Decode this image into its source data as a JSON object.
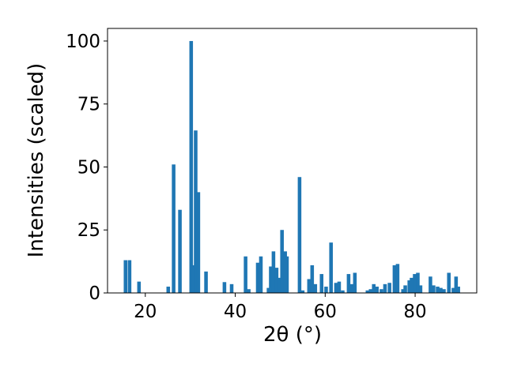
{
  "chart_data": {
    "type": "bar",
    "xlabel": "2θ (°)",
    "ylabel": "Intensities (scaled)",
    "x": [
      15.6,
      16.5,
      18.6,
      25.1,
      26.3,
      27.7,
      30.2,
      30.7,
      31.2,
      31.8,
      33.5,
      37.6,
      39.2,
      42.3,
      43.0,
      45.0,
      45.7,
      47.4,
      47.9,
      48.5,
      49.2,
      49.9,
      50.4,
      51.1,
      51.5,
      54.3,
      55.0,
      56.4,
      57.1,
      57.8,
      59.2,
      60.2,
      61.3,
      62.4,
      63.1,
      63.9,
      65.2,
      65.9,
      66.6,
      69.4,
      70.1,
      70.8,
      71.5,
      72.5,
      73.3,
      74.3,
      75.4,
      76.1,
      77.3,
      77.8,
      78.7,
      79.2,
      79.9,
      80.6,
      81.2,
      83.4,
      84.1,
      85.0,
      85.7,
      86.4,
      87.5,
      88.5,
      89.1,
      89.6
    ],
    "values": [
      13,
      13,
      4.5,
      2.5,
      51,
      33,
      100,
      11,
      64.5,
      40,
      8.5,
      4.3,
      3.5,
      14.5,
      1.5,
      12,
      14.5,
      2,
      10.5,
      16.5,
      10,
      6,
      25,
      16.5,
      14.5,
      46,
      1,
      5.5,
      11,
      3.5,
      7.5,
      2.5,
      20,
      4,
      4.5,
      1,
      7.5,
      3.5,
      8,
      1,
      1.5,
      3.5,
      2.5,
      1.5,
      3.5,
      4,
      11,
      11.5,
      1.5,
      3,
      5,
      6,
      7.5,
      8,
      3,
      6.5,
      3,
      2.5,
      2,
      1.5,
      8,
      2,
      6.5,
      2.5
    ],
    "color": "#1f77b4",
    "bar_width": 0.8,
    "xlim": [
      11.6,
      93.7
    ],
    "xticks": [
      20,
      40,
      60,
      80
    ],
    "ylim": [
      0,
      105
    ],
    "yticks": [
      0,
      25,
      50,
      75,
      100
    ]
  }
}
